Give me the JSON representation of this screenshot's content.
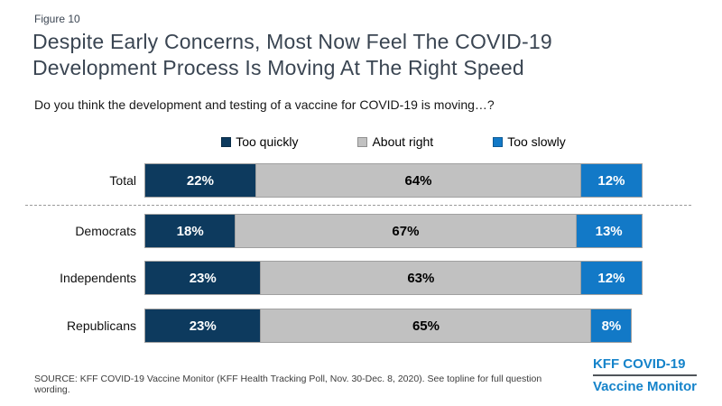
{
  "header": {
    "figure_label": "Figure 10",
    "title_lines": [
      "Despite Early Concerns, Most Now Feel The COVID-19",
      "Development Process Is Moving At The Right Speed"
    ],
    "subtitle": "Do you think the development and testing of a vaccine for COVID-19 is moving…?"
  },
  "chart_data": {
    "type": "bar",
    "orientation": "horizontal-stacked",
    "categories": [
      "Total",
      "Democrats",
      "Independents",
      "Republicans"
    ],
    "series": [
      {
        "name": "Too quickly",
        "color": "#0d3a5e",
        "text_color": "#ffffff",
        "values": [
          22,
          18,
          23,
          23
        ]
      },
      {
        "name": "About right",
        "color": "#c1c1c1",
        "text_color": "#000000",
        "values": [
          64,
          67,
          63,
          65
        ]
      },
      {
        "name": "Too slowly",
        "color": "#1279c7",
        "text_color": "#ffffff",
        "values": [
          12,
          13,
          12,
          8
        ]
      }
    ],
    "value_suffix": "%",
    "xlim": [
      0,
      100
    ],
    "legend_position": "top-center",
    "separator_after_category": "Total",
    "grid": false
  },
  "footer": {
    "source": "SOURCE: KFF COVID-19 Vaccine Monitor (KFF Health Tracking Poll, Nov. 30-Dec. 8, 2020). See topline for full question wording.",
    "logo_line1": "KFF COVID-19",
    "logo_line2": "Vaccine Monitor",
    "logo_color": "#1583ca"
  }
}
